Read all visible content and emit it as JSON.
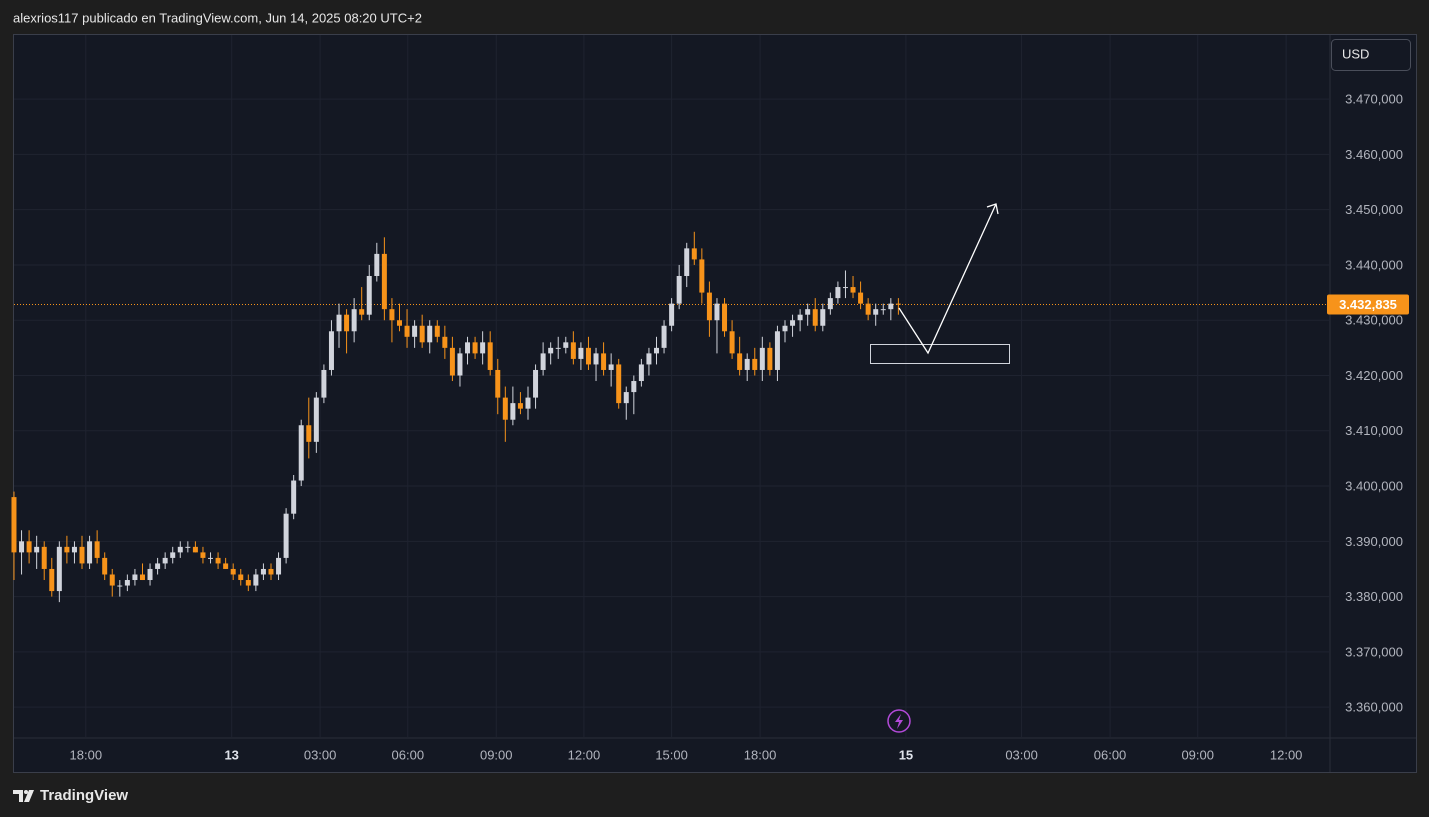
{
  "chart_data": {
    "type": "candlestick",
    "title": "alexrios117 publicado en TradingView.com, Jun 14, 2025 08:20 UTC+2",
    "currency": "USD",
    "brand": "TradingView",
    "up_color": "#d1d4dc",
    "down_color": "#f7931a",
    "grid": true,
    "ylim": [
      3354.6,
      3481.6
    ],
    "yticks": [
      {
        "value": 3470,
        "label": "3.470,000"
      },
      {
        "value": 3460,
        "label": "3.460,000"
      },
      {
        "value": 3450,
        "label": "3.450,000"
      },
      {
        "value": 3440,
        "label": "3.440,000"
      },
      {
        "value": 3430,
        "label": "3.430,000"
      },
      {
        "value": 3420,
        "label": "3.420,000"
      },
      {
        "value": 3410,
        "label": "3.410,000"
      },
      {
        "value": 3400,
        "label": "3.400,000"
      },
      {
        "value": 3390,
        "label": "3.390,000"
      },
      {
        "value": 3380,
        "label": "3.380,000"
      },
      {
        "value": 3370,
        "label": "3.370,000"
      },
      {
        "value": 3360,
        "label": "3.360,000"
      }
    ],
    "xlim": [
      -0.13,
      174.1
    ],
    "xticks": [
      {
        "value": 9.5,
        "label": "18:00"
      },
      {
        "value": 28.8,
        "label": "13"
      },
      {
        "value": 40.5,
        "label": "03:00"
      },
      {
        "value": 52.1,
        "label": "06:00"
      },
      {
        "value": 63.8,
        "label": "09:00"
      },
      {
        "value": 75.4,
        "label": "12:00"
      },
      {
        "value": 87.0,
        "label": "15:00"
      },
      {
        "value": 98.7,
        "label": "18:00"
      },
      {
        "value": 118.0,
        "label": "15"
      },
      {
        "value": 133.3,
        "label": "03:00"
      },
      {
        "value": 145.0,
        "label": "06:00"
      },
      {
        "value": 156.6,
        "label": "09:00"
      },
      {
        "value": 168.3,
        "label": "12:00"
      }
    ],
    "last_price": {
      "value": 3432.835,
      "label": "3.432,835"
    },
    "open": [
      3398,
      3388,
      3390,
      3388,
      3389,
      3385,
      3381,
      3389,
      3388,
      3389,
      3386,
      3390,
      3387,
      3384,
      3382,
      3382,
      3383,
      3384,
      3383,
      3385,
      3386,
      3387,
      3388,
      3389,
      3389,
      3388,
      3387,
      3387,
      3386,
      3385,
      3384,
      3383,
      3382,
      3384,
      3385,
      3384,
      3387,
      3395,
      3401,
      3411,
      3408,
      3416,
      3421,
      3428,
      3431,
      3428,
      3432,
      3431,
      3438,
      3442,
      3432,
      3430,
      3429,
      3427,
      3429,
      3426,
      3429,
      3427,
      3425,
      3420,
      3424,
      3426,
      3424,
      3426,
      3421,
      3416,
      3412,
      3415,
      3414,
      3416,
      3421,
      3424,
      3425,
      3425,
      3426,
      3423,
      3425,
      3422,
      3424,
      3421,
      3422,
      3415,
      3417,
      3419,
      3422,
      3424,
      3425,
      3429,
      3433,
      3438,
      3443,
      3441,
      3435,
      3430,
      3433,
      3428,
      3424,
      3421,
      3423,
      3421,
      3425,
      3421,
      3428,
      3429,
      3430,
      3431,
      3432,
      3429,
      3432,
      3434,
      3436,
      3436,
      3435,
      3433,
      3431,
      3432,
      3432,
      3433
    ],
    "high": [
      3399,
      3392,
      3392,
      3391,
      3390,
      3387,
      3390,
      3391,
      3390,
      3391,
      3391,
      3392,
      3388,
      3385,
      3383,
      3384,
      3385,
      3386,
      3386,
      3387,
      3388,
      3389,
      3390,
      3390,
      3390,
      3389,
      3388,
      3388,
      3387,
      3386,
      3385,
      3384,
      3385,
      3386,
      3386,
      3388,
      3396,
      3402,
      3412,
      3416,
      3417,
      3422,
      3430,
      3433,
      3432,
      3434,
      3436,
      3440,
      3444,
      3445,
      3434,
      3433,
      3432,
      3430,
      3431,
      3430,
      3430,
      3429,
      3427,
      3425,
      3427,
      3427,
      3428,
      3428,
      3423,
      3418,
      3418,
      3417,
      3418,
      3422,
      3426,
      3426,
      3427,
      3427,
      3428,
      3426,
      3427,
      3425,
      3426,
      3424,
      3423,
      3418,
      3420,
      3423,
      3425,
      3427,
      3430,
      3434,
      3440,
      3444,
      3446,
      3443,
      3437,
      3434,
      3434,
      3430,
      3427,
      3424,
      3425,
      3427,
      3426,
      3429,
      3430,
      3431,
      3432,
      3433,
      3434,
      3433,
      3435,
      3437,
      3439,
      3438,
      3437,
      3434,
      3433,
      3433,
      3434,
      3434
    ],
    "low": [
      3383,
      3384,
      3386,
      3385,
      3383,
      3380,
      3379,
      3386,
      3386,
      3385,
      3385,
      3386,
      3383,
      3380,
      3380,
      3381,
      3382,
      3383,
      3382,
      3384,
      3385,
      3386,
      3387,
      3388,
      3388,
      3386,
      3386,
      3385,
      3385,
      3383,
      3382,
      3381,
      3381,
      3383,
      3383,
      3383,
      3386,
      3394,
      3400,
      3405,
      3406,
      3415,
      3420,
      3425,
      3424,
      3426,
      3430,
      3430,
      3437,
      3430,
      3426,
      3428,
      3425,
      3425,
      3425,
      3424,
      3426,
      3423,
      3419,
      3418,
      3422,
      3423,
      3422,
      3420,
      3413,
      3408,
      3411,
      3413,
      3412,
      3414,
      3420,
      3422,
      3423,
      3424,
      3422,
      3421,
      3421,
      3419,
      3420,
      3418,
      3414,
      3412,
      3413,
      3418,
      3420,
      3422,
      3424,
      3428,
      3432,
      3436,
      3440,
      3433,
      3427,
      3424,
      3427,
      3423,
      3420,
      3419,
      3420,
      3419,
      3420,
      3419,
      3426,
      3427,
      3428,
      3429,
      3428,
      3428,
      3431,
      3433,
      3434,
      3434,
      3432,
      3430,
      3429,
      3431,
      3430,
      3431
    ],
    "close": [
      3388,
      3390,
      3388,
      3389,
      3385,
      3381,
      3389,
      3388,
      3389,
      3386,
      3390,
      3387,
      3384,
      3382,
      3382,
      3383,
      3384,
      3383,
      3385,
      3386,
      3387,
      3388,
      3389,
      3389,
      3388,
      3387,
      3387,
      3386,
      3385,
      3384,
      3383,
      3382,
      3384,
      3385,
      3384,
      3387,
      3395,
      3401,
      3411,
      3408,
      3416,
      3421,
      3428,
      3431,
      3428,
      3432,
      3431,
      3438,
      3442,
      3432,
      3430,
      3429,
      3427,
      3429,
      3426,
      3429,
      3427,
      3425,
      3420,
      3424,
      3426,
      3424,
      3426,
      3421,
      3416,
      3412,
      3415,
      3414,
      3416,
      3421,
      3424,
      3425,
      3425,
      3426,
      3423,
      3425,
      3422,
      3424,
      3421,
      3422,
      3415,
      3417,
      3419,
      3422,
      3424,
      3425,
      3429,
      3433,
      3438,
      3443,
      3441,
      3435,
      3430,
      3433,
      3428,
      3424,
      3421,
      3423,
      3421,
      3425,
      3421,
      3428,
      3429,
      3430,
      3431,
      3432,
      3429,
      3432,
      3434,
      3436,
      3436,
      3435,
      3433,
      3431,
      3432,
      3432,
      3433,
      3432.835
    ]
  }
}
